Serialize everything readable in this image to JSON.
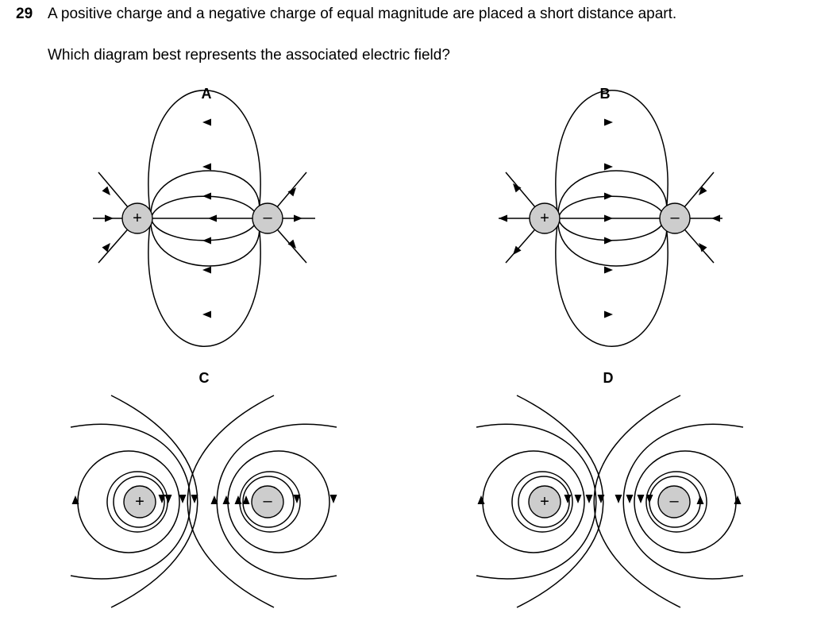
{
  "question": {
    "number": "29",
    "text": "A positive charge and a negative charge of equal magnitude are placed a short distance apart.",
    "prompt": "Which diagram best represents the associated electric field?"
  },
  "options": [
    {
      "label": "A",
      "field_style": "dipole",
      "field_direction": "negative-to-positive",
      "positive_sign": "+",
      "negative_sign": "–"
    },
    {
      "label": "B",
      "field_style": "dipole",
      "field_direction": "positive-to-negative",
      "positive_sign": "+",
      "negative_sign": "–"
    },
    {
      "label": "C",
      "field_style": "circular-loops",
      "positive_sign": "+",
      "negative_sign": "–"
    },
    {
      "label": "D",
      "field_style": "circular-loops",
      "positive_sign": "+",
      "negative_sign": "–"
    }
  ]
}
